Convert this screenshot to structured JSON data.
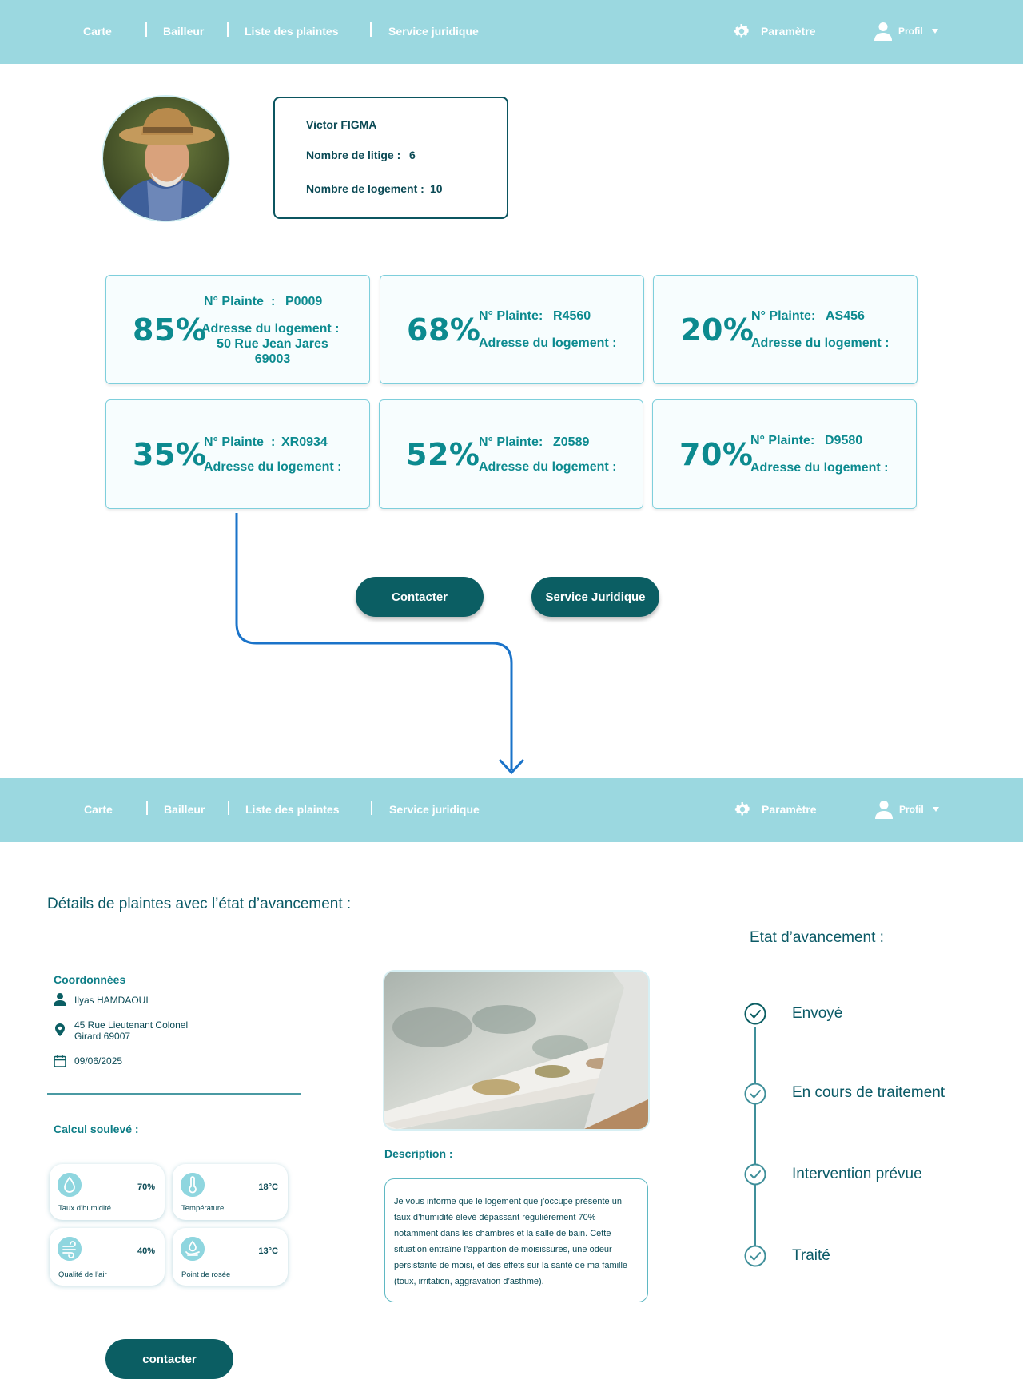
{
  "nav": {
    "carte": "Carte",
    "bailleur": "Bailleur",
    "plaintes": "Liste des plaintes",
    "juridique": "Service juridique",
    "parametre": "Paramètre",
    "profil": "Profil"
  },
  "profile": {
    "name": "Victor FIGMA",
    "litige_label": "Nombre de litige :",
    "litige_value": "6",
    "logement_label": "Nombre de logement :",
    "logement_value": "10"
  },
  "complaints": [
    {
      "pct": "85%",
      "num_label": "N° Plainte",
      "num": "P0009",
      "addr_label": "Adresse du logement :",
      "addr_line1": "50 Rue Jean Jares",
      "addr_line2": "69003"
    },
    {
      "pct": "68%",
      "num_label": "N° Plainte",
      "num": "R4560",
      "addr_label": "Adresse du logement :"
    },
    {
      "pct": "20%",
      "num_label": "N° Plainte",
      "num": "AS456",
      "addr_label": "Adresse du logement :"
    },
    {
      "pct": "35%",
      "num_label": "N° Plainte",
      "num": "XR0934",
      "addr_label": "Adresse du logement :"
    },
    {
      "pct": "52%",
      "num_label": "N° Plainte",
      "num": "Z0589",
      "addr_label": "Adresse du logement :"
    },
    {
      "pct": "70%",
      "num_label": "N° Plainte",
      "num": "D9580",
      "addr_label": "Adresse du logement :"
    }
  ],
  "actions": {
    "contacter": "Contacter",
    "juridique": "Service Juridique"
  },
  "details": {
    "title": "Détails de plaintes avec l’état d’avancement :",
    "coord_title": "Coordonnées",
    "person": "Ilyas HAMDAOUI",
    "address_line1": "45 Rue Lieutenant Colonel",
    "address_line2": "Girard 69007",
    "date": "09/06/2025",
    "calc_title": "Calcul soulevé :",
    "metrics": [
      {
        "label": "Taux d’humidité",
        "value": "70%",
        "icon": "humidity-drop-icon"
      },
      {
        "label": "Température",
        "value": "18°C",
        "icon": "thermometer-icon"
      },
      {
        "label": "Qualité de l’air",
        "value": "40%",
        "icon": "air-wind-icon"
      },
      {
        "label": "Point de rosée",
        "value": "13°C",
        "icon": "dew-point-icon"
      }
    ],
    "desc_title": "Description :",
    "description": "Je vous informe que le logement que j’occupe présente un taux d’humidité élevé dépassant régulièrement 70% notamment dans les chambres et la salle de bain. Cette situation entraîne l’apparition de moisissures, une odeur persistante de moisi, et des effets sur la santé de ma famille (toux, irritation, aggravation d’asthme).",
    "contact_btn": "contacter"
  },
  "progress": {
    "title": "Etat d’avancement :",
    "steps": [
      "Envoyé",
      "En cours de traitement",
      "Intervention prévue",
      "Traité"
    ]
  },
  "colors": {
    "header": "#9bd8e0",
    "accent": "#0c8a8f",
    "button": "#0b5e63",
    "arrow": "#1a73c9"
  }
}
